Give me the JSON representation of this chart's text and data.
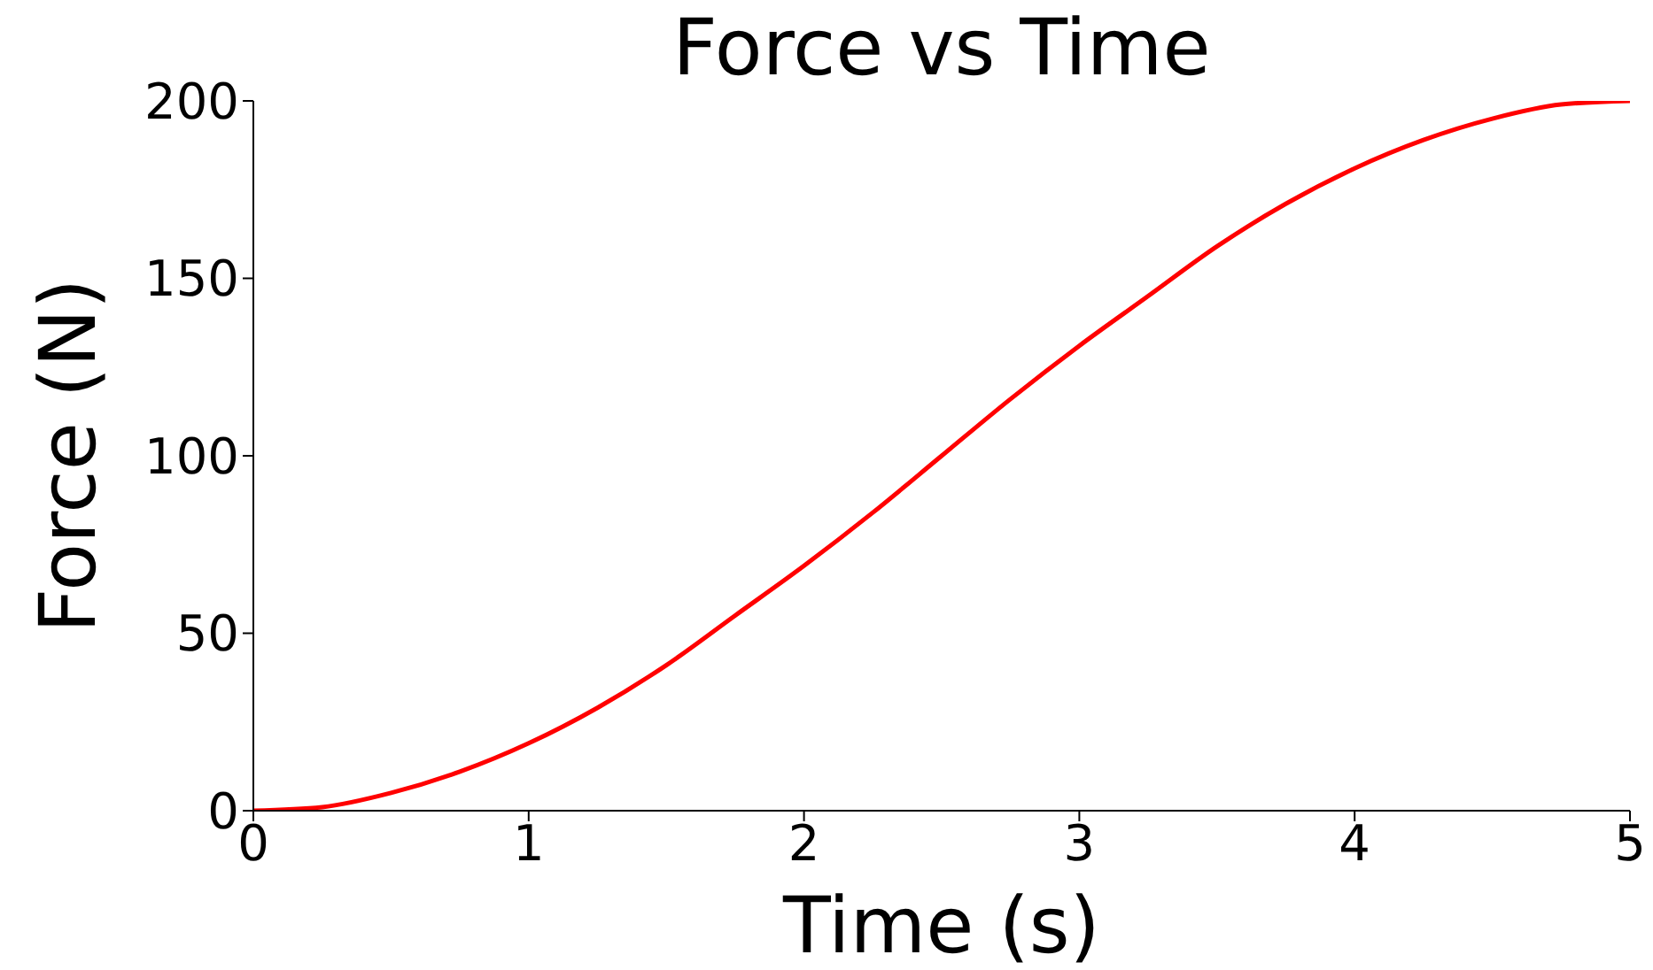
{
  "chart_data": {
    "type": "line",
    "title": "Force vs Time",
    "xlabel": "Time (s)",
    "ylabel": "Force (N)",
    "x": [
      0,
      0.25,
      0.5,
      0.75,
      1,
      1.25,
      1.5,
      1.75,
      2,
      2.25,
      2.5,
      2.75,
      3,
      3.25,
      3.5,
      3.75,
      4,
      4.25,
      4.5,
      4.75,
      5
    ],
    "series": [
      {
        "color": "#ff0000",
        "values": [
          0,
          1,
          5,
          11,
          19,
          29,
          41,
          55,
          69,
          84,
          100,
          116,
          131,
          145,
          159,
          171,
          181,
          189,
          195,
          199,
          200
        ]
      }
    ],
    "xlim": [
      0,
      5
    ],
    "xticks": [
      0,
      1,
      2,
      3,
      4,
      5
    ],
    "ylim": [
      0,
      200
    ],
    "yticks": [
      0,
      50,
      100,
      150,
      200
    ],
    "grid": false,
    "legend": false,
    "marker": "none",
    "line_style": "solid"
  }
}
